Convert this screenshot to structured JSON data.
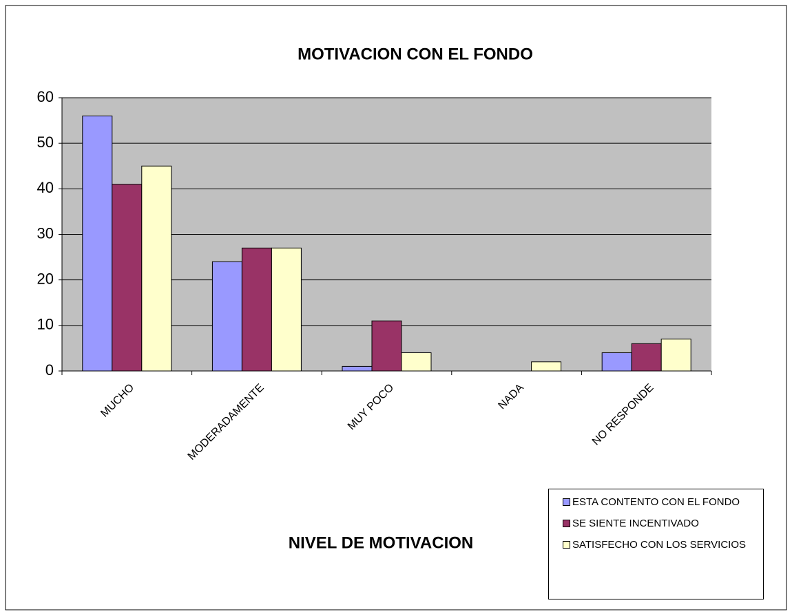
{
  "chart_data": {
    "type": "bar",
    "title": "MOTIVACION CON EL FONDO",
    "x_label": "NIVEL DE MOTIVACION",
    "categories": [
      "MUCHO",
      "MODERADAMENTE",
      "MUY POCO",
      "NADA",
      "NO RESPONDE"
    ],
    "series": [
      {
        "name": "ESTA CONTENTO CON EL FONDO",
        "color": "#9999ff",
        "values": [
          56,
          24,
          1,
          0,
          4
        ]
      },
      {
        "name": "SE SIENTE INCENTIVADO",
        "color": "#993366",
        "values": [
          41,
          27,
          11,
          0,
          6
        ]
      },
      {
        "name": "SATISFECHO CON LOS SERVICIOS",
        "color": "#ffffcc",
        "values": [
          45,
          27,
          4,
          2,
          7
        ]
      }
    ],
    "ylim": [
      0,
      60
    ],
    "yticks": [
      0,
      10,
      20,
      30,
      40,
      50,
      60
    ],
    "grid": true,
    "legend": "lower right"
  }
}
